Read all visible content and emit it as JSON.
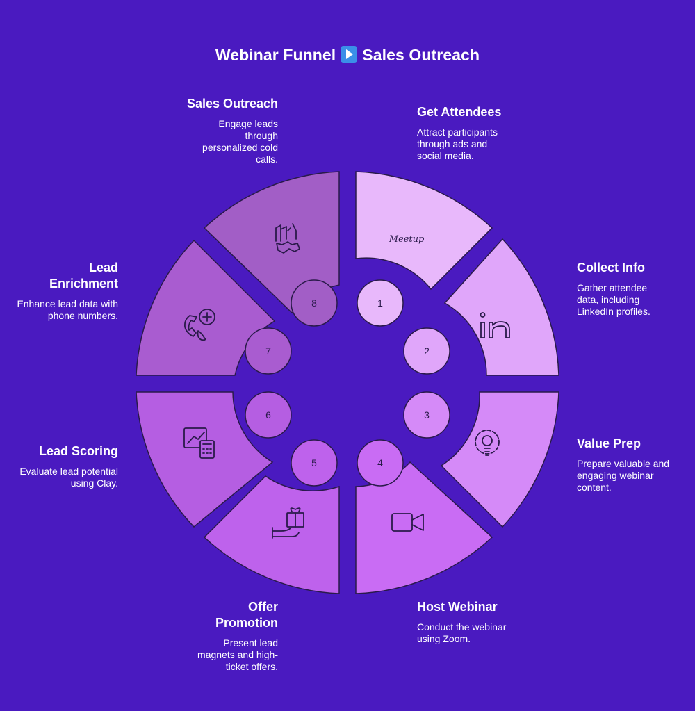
{
  "title": {
    "left": "Webinar Funnel",
    "right": "Sales Outreach",
    "separator_icon": "play-button-icon"
  },
  "steps": [
    {
      "number": "1",
      "title": "Get Attendees",
      "description": "Attract participants through ads and social media.",
      "icon": "meetup-logo-icon",
      "icon_text": "Meetup",
      "color": "#e8b8fb"
    },
    {
      "number": "2",
      "title": "Collect Info",
      "description": "Gather attendee data, including LinkedIn profiles.",
      "icon": "linkedin-icon",
      "color": "#e0a6fa"
    },
    {
      "number": "3",
      "title": "Value Prep",
      "description": "Prepare valuable and engaging webinar content.",
      "icon": "gear-lightbulb-icon",
      "color": "#d58af8"
    },
    {
      "number": "4",
      "title": "Host Webinar",
      "description": "Conduct the webinar using Zoom.",
      "icon": "video-camera-icon",
      "color": "#c96cf4"
    },
    {
      "number": "5",
      "title": "Offer Promotion",
      "description": "Present lead magnets and high-ticket offers.",
      "icon": "gift-hand-icon",
      "color": "#be62ec"
    },
    {
      "number": "6",
      "title": "Lead Scoring",
      "description": "Evaluate lead potential using Clay.",
      "icon": "chart-calculator-icon",
      "color": "#b55ee2"
    },
    {
      "number": "7",
      "title": "Lead Enrichment",
      "description": "Enhance lead data with phone numbers.",
      "icon": "phone-add-icon",
      "color": "#a95cd0"
    },
    {
      "number": "8",
      "title": "Sales Outreach",
      "description": "Engage leads through personalized cold calls.",
      "icon": "building-handshake-icon",
      "color": "#a25ec6"
    }
  ]
}
